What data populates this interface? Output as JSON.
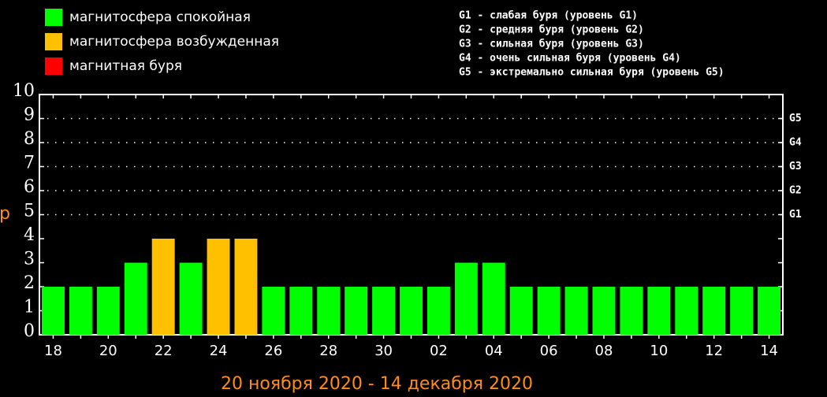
{
  "chart_data": {
    "type": "bar",
    "title": "20 ноября 2020 - 14 декабря 2020",
    "ylabel": "p",
    "legend": [
      {
        "name": "магнитосфера спокойная",
        "color": "#00ff00"
      },
      {
        "name": "магнитосфера возбужденная",
        "color": "#ffc000"
      },
      {
        "name": "магнитная буря",
        "color": "#ff0000"
      }
    ],
    "storm_levels": [
      "G1 - слабая буря (уровень G1)",
      "G2 - средняя буря (уровень G2)",
      "G3 - сильная буря (уровень G3)",
      "G4 - очень сильная буря (уровень G4)",
      "G5 - экстремально сильная буря (уровень G5)"
    ],
    "categories": [
      "18",
      null,
      "20",
      null,
      "22",
      null,
      "24",
      null,
      "26",
      null,
      "28",
      null,
      "30",
      null,
      "02",
      null,
      "04",
      null,
      "06",
      null,
      "08",
      null,
      "10",
      null,
      "12",
      null,
      "14"
    ],
    "values": [
      2,
      2,
      2,
      3,
      4,
      3,
      4,
      4,
      2,
      2,
      2,
      2,
      2,
      2,
      2,
      3,
      3,
      2,
      2,
      2,
      2,
      2,
      2,
      2,
      2,
      2,
      2
    ],
    "colors": [
      "#00ff00",
      "#00ff00",
      "#00ff00",
      "#00ff00",
      "#ffc000",
      "#00ff00",
      "#ffc000",
      "#ffc000",
      "#00ff00",
      "#00ff00",
      "#00ff00",
      "#00ff00",
      "#00ff00",
      "#00ff00",
      "#00ff00",
      "#00ff00",
      "#00ff00",
      "#00ff00",
      "#00ff00",
      "#00ff00",
      "#00ff00",
      "#00ff00",
      "#00ff00",
      "#00ff00",
      "#00ff00",
      "#00ff00",
      "#00ff00"
    ],
    "ylim": [
      0,
      10
    ],
    "yticks": [
      0,
      1,
      2,
      3,
      4,
      5,
      6,
      7,
      8,
      9,
      10
    ],
    "y2lim": [
      0,
      10
    ],
    "y2ticks": [
      {
        "value": 5,
        "label": "G1"
      },
      {
        "value": 6,
        "label": "G2"
      },
      {
        "value": 7,
        "label": "G3"
      },
      {
        "value": 8,
        "label": "G4"
      },
      {
        "value": 9,
        "label": "G5"
      }
    ],
    "grid": true
  }
}
